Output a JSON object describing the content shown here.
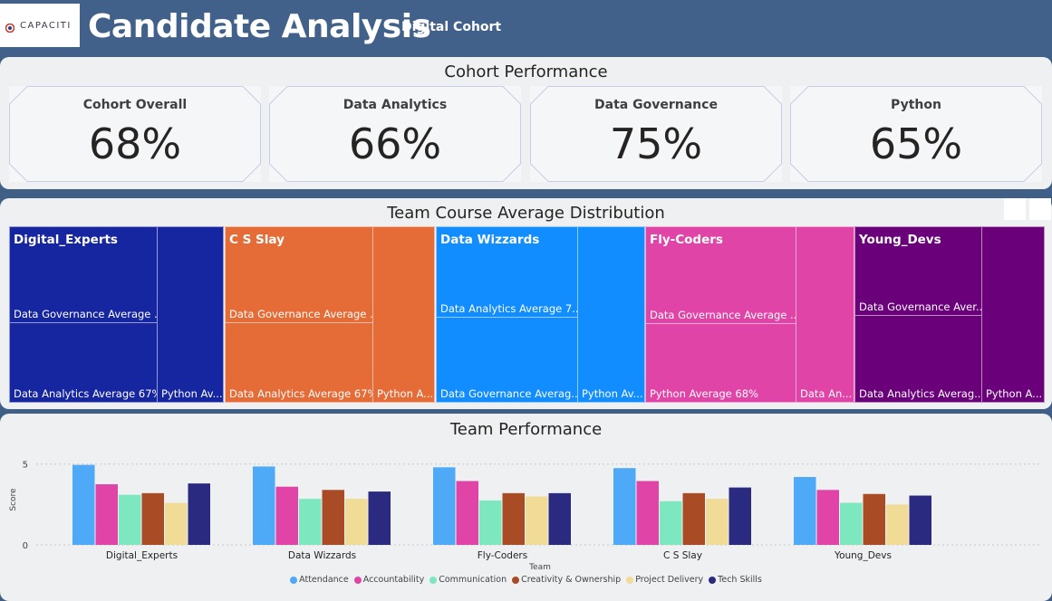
{
  "header": {
    "logo_text": "CAPACITI",
    "title": "Candidate Analysis",
    "subtitle": "Digital Cohort"
  },
  "cohort_performance": {
    "title": "Cohort Performance",
    "cards": [
      {
        "label": "Cohort Overall",
        "value": "68%"
      },
      {
        "label": "Data Analytics",
        "value": "66%"
      },
      {
        "label": "Data Governance",
        "value": "75%"
      },
      {
        "label": "Python",
        "value": "65%"
      }
    ]
  },
  "treemap": {
    "title": "Team Course Average Distribution",
    "teams": [
      {
        "name": "Digital_Experts",
        "color": "#1625a0",
        "labels": [
          "Data Governance Average ...",
          "Data Analytics Average 67%",
          "Python Av..."
        ]
      },
      {
        "name": "C S Slay",
        "color": "#e66c37",
        "labels": [
          "Data Governance Average ...",
          "Data Analytics Average 67%",
          "Python A..."
        ]
      },
      {
        "name": "Data Wizzards",
        "color": "#118dff",
        "labels": [
          "Data Analytics Average 7...",
          "Data Governance Averag...",
          "Python Av..."
        ]
      },
      {
        "name": "Fly-Coders",
        "color": "#e044a7",
        "labels": [
          "Data Governance Average ...",
          "Python Average 68%",
          "Data An..."
        ]
      },
      {
        "name": "Young_Devs",
        "color": "#6b007b",
        "labels": [
          "Data Governance Aver...",
          "Data Analytics Averag...",
          "Python A..."
        ]
      }
    ]
  },
  "team_performance": {
    "title": "Team Performance",
    "xlabel": "Team",
    "ylabel": "Score",
    "colors": [
      "#4ea9f7",
      "#e044a7",
      "#7de8c0",
      "#a94c25",
      "#f0dc96",
      "#2a2a80"
    ]
  },
  "chart_data": {
    "type": "bar",
    "title": "Team Performance",
    "xlabel": "Team",
    "ylabel": "Score",
    "ylim": [
      0,
      5.6
    ],
    "yticks": [
      0,
      5
    ],
    "grid": true,
    "legend_position": "bottom",
    "categories": [
      "Digital_Experts",
      "Data Wizzards",
      "Fly-Coders",
      "C S Slay",
      "Young_Devs"
    ],
    "series": [
      {
        "name": "Attendance",
        "values": [
          4.95,
          4.85,
          4.8,
          4.75,
          4.2
        ]
      },
      {
        "name": "Accountability",
        "values": [
          3.75,
          3.6,
          3.95,
          3.95,
          3.4
        ]
      },
      {
        "name": "Communication",
        "values": [
          3.1,
          2.85,
          2.75,
          2.7,
          2.6
        ]
      },
      {
        "name": "Creativity & Ownership",
        "values": [
          3.2,
          3.4,
          3.2,
          3.2,
          3.15
        ]
      },
      {
        "name": "Project Delivery",
        "values": [
          2.6,
          2.85,
          3.0,
          2.85,
          2.5
        ]
      },
      {
        "name": "Tech Skills",
        "values": [
          3.8,
          3.3,
          3.2,
          3.55,
          3.05
        ]
      }
    ]
  }
}
